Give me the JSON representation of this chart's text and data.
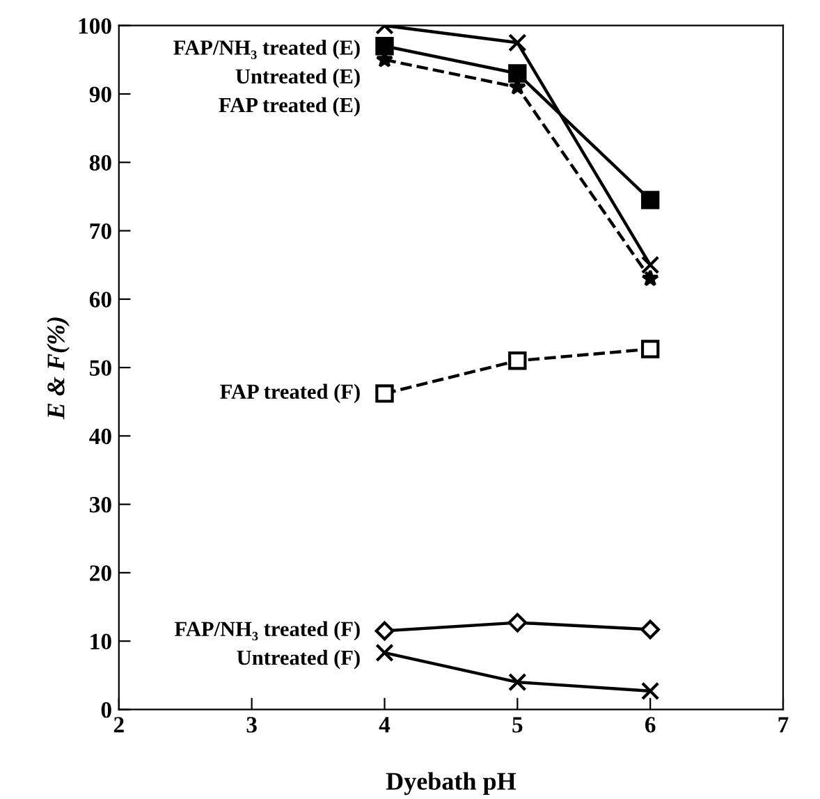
{
  "chart_data": {
    "type": "line",
    "xlabel": "Dyebath pH",
    "ylabel": "E & F(%)",
    "x": [
      4,
      5,
      6
    ],
    "xlim": [
      2,
      7
    ],
    "ylim": [
      0,
      100
    ],
    "xticks": [
      2,
      3,
      4,
      5,
      6,
      7
    ],
    "yticks": [
      0,
      10,
      20,
      30,
      40,
      50,
      60,
      70,
      80,
      90,
      100
    ],
    "grid": false,
    "legend": false,
    "series": [
      {
        "name": "FAP/NH₃ treated (E)",
        "color": "#000000",
        "values": [
          100,
          97.5,
          65
        ],
        "marker": "cross",
        "line_style": "solid"
      },
      {
        "name": "Untreated (E)",
        "color": "#000000",
        "values": [
          97,
          93,
          74.5
        ],
        "marker": "square",
        "line_style": "solid"
      },
      {
        "name": "FAP treated (E)",
        "color": "#000000",
        "values": [
          95,
          91,
          63
        ],
        "marker": "star",
        "line_style": "dashed"
      },
      {
        "name": "FAP treated (F)",
        "color": "#000000",
        "values": [
          46.2,
          51,
          52.7
        ],
        "marker": "square",
        "line_style": "dashed"
      },
      {
        "name": "FAP/NH₃ treated (F)",
        "color": "#000000",
        "values": [
          11.5,
          12.7,
          11.7
        ],
        "marker": "diamond",
        "line_style": "solid"
      },
      {
        "name": "Untreated (F)",
        "color": "#000000",
        "values": [
          8.3,
          4,
          2.7
        ],
        "marker": "cross",
        "line_style": "solid"
      }
    ]
  }
}
